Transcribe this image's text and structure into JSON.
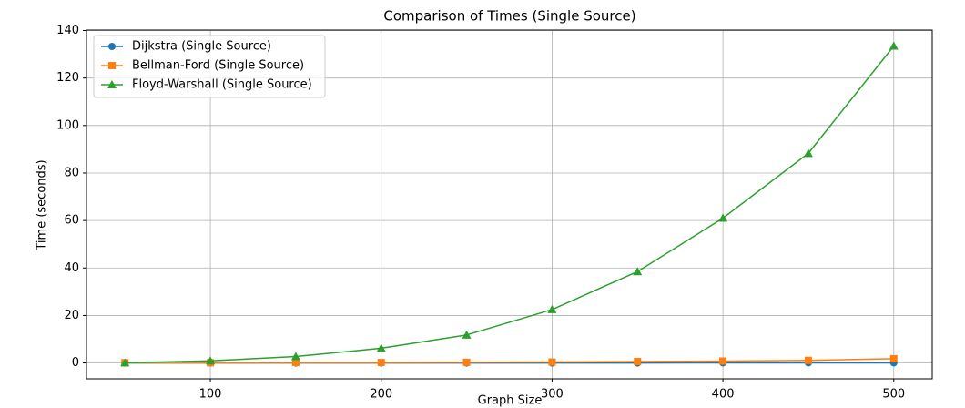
{
  "chart_data": {
    "type": "line",
    "title": "Comparison of Times (Single Source)",
    "x_label": "Graph Size",
    "y_label": "Time (seconds)",
    "x": [
      50,
      100,
      150,
      200,
      250,
      300,
      350,
      400,
      450,
      500
    ],
    "series": [
      {
        "name": "Dijkstra (Single Source)",
        "color": "#1f77b4",
        "marker": "circle",
        "values": [
          0,
          0,
          0,
          0,
          0,
          0,
          0,
          0.05,
          0.05,
          0.05
        ]
      },
      {
        "name": "Bellman-Ford (Single Source)",
        "color": "#ff7f0e",
        "marker": "square",
        "values": [
          0.1,
          0.1,
          0.2,
          0.2,
          0.3,
          0.4,
          0.6,
          0.8,
          1.1,
          1.8
        ]
      },
      {
        "name": "Floyd-Warshall (Single Source)",
        "color": "#2ca02c",
        "marker": "triangle",
        "values": [
          0.1,
          0.9,
          2.7,
          6.2,
          11.8,
          22.5,
          38.5,
          61,
          88.3,
          133.5
        ]
      }
    ],
    "xlim": [
      27.5,
      522.5
    ],
    "xticks": [
      100,
      200,
      300,
      400,
      500
    ],
    "ylim": [
      -6.675,
      140.2
    ],
    "yticks": [
      0,
      20,
      40,
      60,
      80,
      100,
      120,
      140
    ],
    "grid": true,
    "legend": "upper-left"
  }
}
